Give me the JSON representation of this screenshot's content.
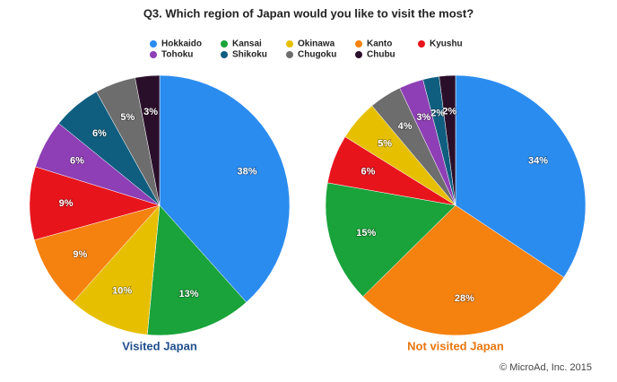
{
  "title": "Q3.  Which region of Japan would you like to visit the most?",
  "legend": [
    {
      "name": "Hokkaido",
      "color": "#2b8cf0"
    },
    {
      "name": "Kansai",
      "color": "#19a33a"
    },
    {
      "name": "Okinawa",
      "color": "#e6c000"
    },
    {
      "name": "Kanto",
      "color": "#f5820f"
    },
    {
      "name": "Kyushu",
      "color": "#e8141c"
    },
    {
      "name": "Tohoku",
      "color": "#8e3fb5"
    },
    {
      "name": "Shikoku",
      "color": "#0f5e80"
    },
    {
      "name": "Chugoku",
      "color": "#6d6d6d"
    },
    {
      "name": "Chubu",
      "color": "#2a0f2a"
    }
  ],
  "source": "© MicroAd, Inc. 2015",
  "chart_data": [
    {
      "type": "pie",
      "title": "Visited Japan",
      "title_color": "#1f4e8c",
      "categories": [
        "Hokkaido",
        "Kansai",
        "Okinawa",
        "Kanto",
        "Kyushu",
        "Tohoku",
        "Shikoku",
        "Chugoku",
        "Chubu"
      ],
      "values": [
        38,
        13,
        10,
        9,
        9,
        6,
        6,
        5,
        3
      ],
      "value_labels": [
        "38%",
        "13%",
        "10%",
        "9%",
        "9%",
        "6%",
        "6%",
        "5%",
        "3%"
      ],
      "colors": [
        "#2b8cf0",
        "#19a33a",
        "#e6c000",
        "#f5820f",
        "#e8141c",
        "#8e3fb5",
        "#0f5e80",
        "#6d6d6d",
        "#2a0f2a"
      ]
    },
    {
      "type": "pie",
      "title": "Not visited Japan",
      "title_color": "#e8760f",
      "categories": [
        "Hokkaido",
        "Kanto",
        "Kansai",
        "Kyushu",
        "Okinawa",
        "Chugoku",
        "Tohoku",
        "Shikoku",
        "Chubu"
      ],
      "values": [
        34,
        28,
        15,
        6,
        5,
        4,
        3,
        2,
        2
      ],
      "value_labels": [
        "34%",
        "28%",
        "15%",
        "6%",
        "5%",
        "4%",
        "3%",
        "2%",
        "2%"
      ],
      "colors": [
        "#2b8cf0",
        "#f5820f",
        "#19a33a",
        "#e8141c",
        "#e6c000",
        "#6d6d6d",
        "#8e3fb5",
        "#0f5e80",
        "#2a0f2a"
      ]
    }
  ]
}
